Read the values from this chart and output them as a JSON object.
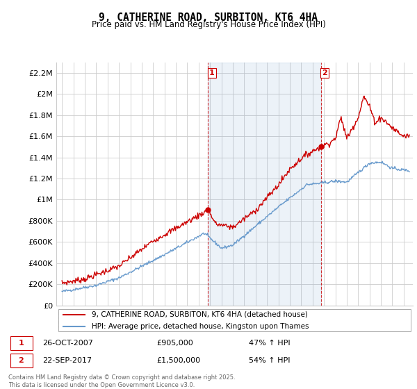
{
  "title": "9, CATHERINE ROAD, SURBITON, KT6 4HA",
  "subtitle": "Price paid vs. HM Land Registry's House Price Index (HPI)",
  "legend_line1": "9, CATHERINE ROAD, SURBITON, KT6 4HA (detached house)",
  "legend_line2": "HPI: Average price, detached house, Kingston upon Thames",
  "annotation1_label": "1",
  "annotation1_date": "26-OCT-2007",
  "annotation1_price": "£905,000",
  "annotation1_hpi": "47% ↑ HPI",
  "annotation2_label": "2",
  "annotation2_date": "22-SEP-2017",
  "annotation2_price": "£1,500,000",
  "annotation2_hpi": "54% ↑ HPI",
  "footer": "Contains HM Land Registry data © Crown copyright and database right 2025.\nThis data is licensed under the Open Government Licence v3.0.",
  "red_color": "#cc0000",
  "blue_color": "#6699cc",
  "blue_fill": "#ddeeff",
  "vline_color": "#cc0000",
  "grid_color": "#cccccc",
  "background_color": "#ffffff",
  "ylim": [
    0,
    2300000
  ],
  "yticks": [
    0,
    200000,
    400000,
    600000,
    800000,
    1000000,
    1200000,
    1400000,
    1600000,
    1800000,
    2000000,
    2200000
  ],
  "ytick_labels": [
    "£0",
    "£200K",
    "£400K",
    "£600K",
    "£800K",
    "£1M",
    "£1.2M",
    "£1.4M",
    "£1.6M",
    "£1.8M",
    "£2M",
    "£2.2M"
  ],
  "sale1_x": 2007.82,
  "sale1_y": 905000,
  "sale2_x": 2017.73,
  "sale2_y": 1500000,
  "xmin": 1994.5,
  "xmax": 2025.8
}
